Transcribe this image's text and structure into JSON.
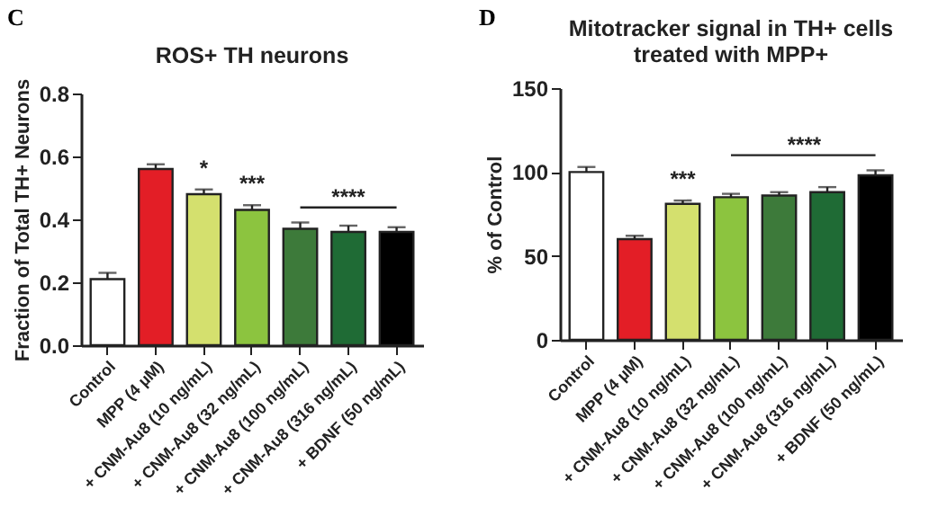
{
  "chart_data": [
    {
      "type": "bar",
      "title": "ROS+ TH neurons",
      "ylabel": "Fraction of Total TH+ Neurons",
      "categories": [
        "Control",
        "MPP (4 µM)",
        "+ CNM-Au8 (10 ng/mL)",
        "+ CNM-Au8 (32 ng/mL)",
        "+ CNM-Au8 (100 ng/mL)",
        "+ CNM-Au8 (316 ng/mL)",
        "+ BDNF (50 ng/mL)"
      ],
      "values": [
        0.21,
        0.56,
        0.48,
        0.43,
        0.37,
        0.36,
        0.36
      ],
      "errors": [
        [
          0.21,
          0.23
        ],
        [
          0.56,
          0.575
        ],
        [
          0.48,
          0.495
        ],
        [
          0.43,
          0.445
        ],
        [
          0.37,
          0.39
        ],
        [
          0.36,
          0.38
        ],
        [
          0.36,
          0.375
        ]
      ],
      "colors": [
        "#ffffff",
        "#e31e26",
        "#d4e06e",
        "#8cc43f",
        "#3d7a3a",
        "#1f6b35",
        "#000000"
      ],
      "ylim": [
        0,
        0.8
      ],
      "yticks": [
        {
          "value": 0,
          "label": "0.0"
        },
        {
          "value": 0.2,
          "label": "0.2"
        },
        {
          "value": 0.4,
          "label": "0.4"
        },
        {
          "value": 0.6,
          "label": "0.6"
        },
        {
          "value": 0.8,
          "label": "0.8"
        }
      ],
      "annotations": [
        "C",
        {
          "text": "*",
          "x": "+ CNM-Au8 (10 ng/mL)",
          "y": 0.48
        },
        {
          "text": "***",
          "x": "+ CNM-Au8 (32 ng/mL)",
          "y": 0.43
        },
        {
          "text": "****",
          "x": "+ CNM-Au8 (316 ng/mL)",
          "y": 0.36
        }
      ]
    },
    {
      "type": "bar",
      "title": "Mitotracker signal in TH+ cells\ntreated with MPP+",
      "ylabel": "% of Control",
      "categories": [
        "Control",
        "MPP (4 µM)",
        "+ CNM-Au8 (10 ng/mL)",
        "+ CNM-Au8 (32 ng/mL)",
        "+ CNM-Au8 (100 ng/mL)",
        "+ CNM-Au8 (316 ng/mL)",
        "+ BDNF (50 ng/mL)"
      ],
      "values": [
        100,
        60,
        81,
        85,
        86,
        88,
        98
      ],
      "errors": [
        [
          100,
          103
        ],
        [
          60,
          62
        ],
        [
          81,
          83
        ],
        [
          85,
          87
        ],
        [
          86,
          88
        ],
        [
          88,
          91
        ],
        [
          98,
          101
        ]
      ],
      "colors": [
        "#ffffff",
        "#e31e26",
        "#d4e06e",
        "#8cc43f",
        "#3d7a3a",
        "#1f6b35",
        "#000000"
      ],
      "ylim": [
        0,
        150
      ],
      "yticks": [
        0,
        50,
        100,
        150
      ],
      "annotations": [
        "D",
        {
          "text": "***",
          "x": "+ CNM-Au8 (10 ng/mL)",
          "y": 81
        },
        {
          "text": "****",
          "x": "+ CNM-Au8 (100 ng/mL)",
          "y": 86
        }
      ]
    }
  ]
}
